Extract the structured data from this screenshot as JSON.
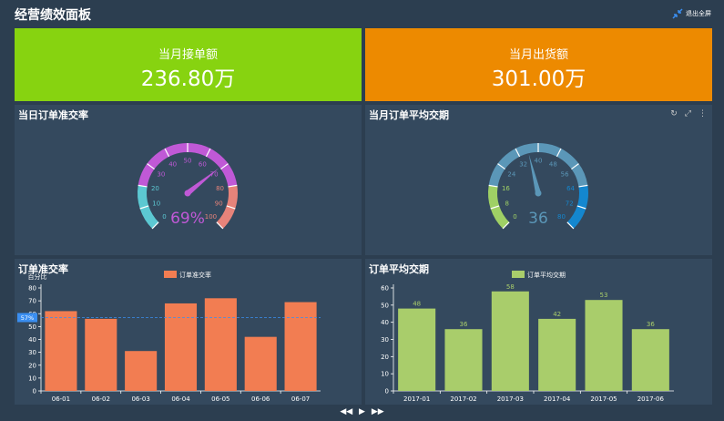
{
  "header": {
    "title": "经营绩效面板",
    "exit_label": "退出全屏"
  },
  "kpis": [
    {
      "label": "当月接单额",
      "value": "236.80万",
      "color": "#87d310"
    },
    {
      "label": "当月出货额",
      "value": "301.00万",
      "color": "#ed8a00"
    }
  ],
  "gauges": [
    {
      "title": "当日订单准交率",
      "min": 0,
      "max": 100,
      "value": 69,
      "value_text": "69%",
      "ticks": [
        "0",
        "10",
        "20",
        "30",
        "40",
        "50",
        "60",
        "70",
        "80",
        "90",
        "100"
      ],
      "colors": [
        "#5cc8d2",
        "#c059d6",
        "#e7837a"
      ],
      "pointer_color": "#c059d6"
    },
    {
      "title": "当月订单平均交期",
      "min": 0,
      "max": 80,
      "value": 36,
      "value_text": "36",
      "ticks": [
        "0",
        "8",
        "16",
        "24",
        "32",
        "40",
        "48",
        "56",
        "64",
        "72",
        "80"
      ],
      "colors": [
        "#9fd065",
        "#5b97b8",
        "#1487cf"
      ],
      "pointer_color": "#5b97b8",
      "tools": [
        "↻",
        "⤢",
        "⋮"
      ]
    }
  ],
  "chart_data": [
    {
      "type": "bar",
      "title": "订单准交率",
      "ylabel": "百分比",
      "xlabel": "",
      "categories": [
        "06-01",
        "06-02",
        "06-03",
        "06-04",
        "06-05",
        "06-06",
        "06-07"
      ],
      "series": [
        {
          "name": "订单准交率",
          "values": [
            62,
            56,
            31,
            68,
            72,
            42,
            69
          ]
        }
      ],
      "ylim": [
        0,
        80
      ],
      "yticks": [
        "0",
        "10",
        "20",
        "30",
        "40",
        "50",
        "60",
        "70",
        "80"
      ],
      "average_line": 57,
      "average_label": "57%",
      "color": "#f27d52"
    },
    {
      "type": "bar",
      "title": "订单平均交期",
      "xlabel": "",
      "ylabel": "",
      "categories": [
        "2017-01",
        "2017-02",
        "2017-03",
        "2017-04",
        "2017-05",
        "2017-06"
      ],
      "series": [
        {
          "name": "订单平均交期",
          "values": [
            48,
            36,
            58,
            42,
            53,
            36
          ]
        }
      ],
      "ylim": [
        0,
        60
      ],
      "yticks": [
        "0",
        "10",
        "20",
        "30",
        "40",
        "50",
        "60"
      ],
      "data_labels": [
        "48",
        "36",
        "58",
        "42",
        "53",
        "36"
      ],
      "color": "#a9cd6b"
    }
  ],
  "footer": {
    "prev": "◀◀",
    "play": "▶",
    "next": "▶▶"
  }
}
